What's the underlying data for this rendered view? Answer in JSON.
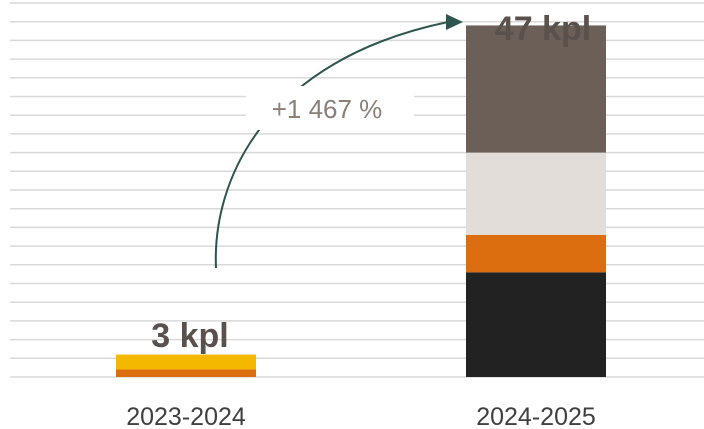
{
  "chart_data": {
    "type": "bar",
    "stacked": true,
    "categories": [
      "2023-2024",
      "2024-2025"
    ],
    "totals_text": [
      "3 kpl",
      "47 kpl"
    ],
    "totals": [
      3,
      47
    ],
    "ylim": [
      0,
      50
    ],
    "gridlines": true,
    "gridline_step": 2.5,
    "series": [
      {
        "color": "#222222",
        "values": [
          0,
          14
        ]
      },
      {
        "color": "#dd6e10",
        "values": [
          1,
          5
        ]
      },
      {
        "color": "#f5b800",
        "values": [
          2,
          0
        ]
      },
      {
        "color": "#e2ddd9",
        "values": [
          0,
          11
        ]
      },
      {
        "color": "#6b5f58",
        "values": [
          0,
          17
        ]
      }
    ],
    "growth_annotation": {
      "text": "+1 467 %",
      "arrow_color": "#2e5550"
    }
  }
}
